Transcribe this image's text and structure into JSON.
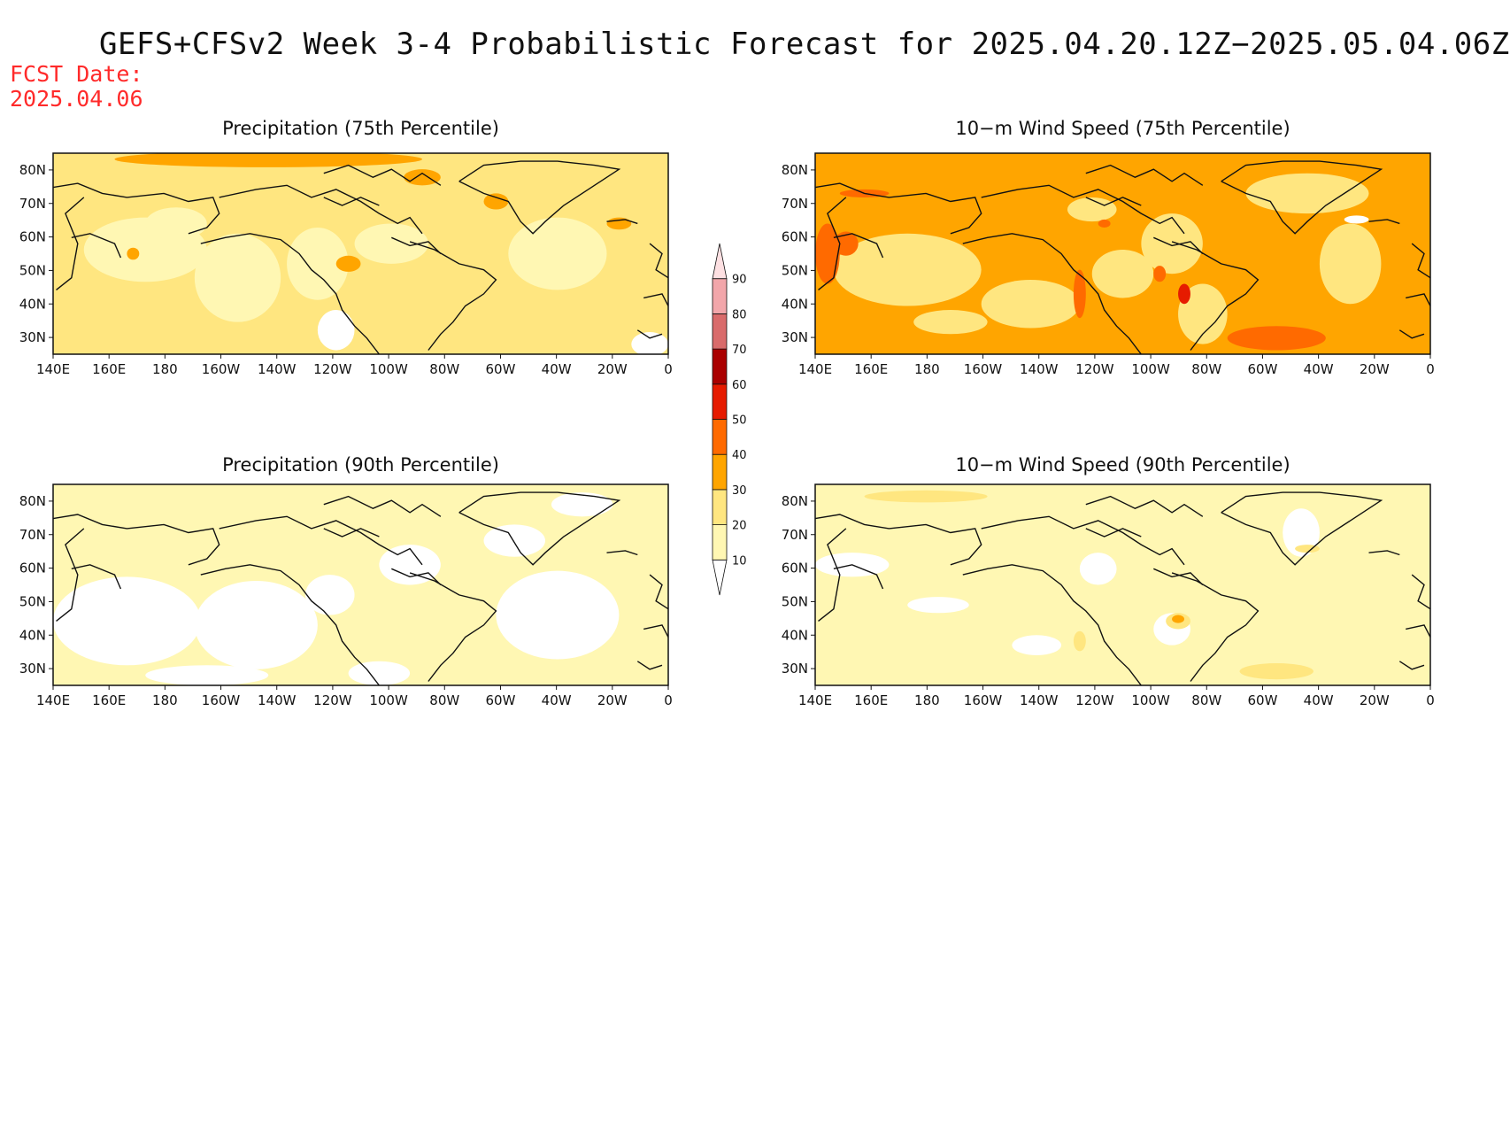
{
  "title": "GEFS+CFSv2 Week 3-4 Probabilistic Forecast for 2025.04.20.12Z−2025.05.04.06Z",
  "fcst_label": "FCST Date:",
  "fcst_date": "2025.04.06",
  "x_ticks": [
    "140E",
    "160E",
    "180",
    "160W",
    "140W",
    "120W",
    "100W",
    "80W",
    "60W",
    "40W",
    "20W",
    "0"
  ],
  "y_ticks": [
    "80N",
    "70N",
    "60N",
    "50N",
    "40N",
    "30N"
  ],
  "colorbar": {
    "levels": [
      "10",
      "20",
      "30",
      "40",
      "50",
      "60",
      "70",
      "80",
      "90"
    ],
    "colors": [
      "#ffffff",
      "#fff7b3",
      "#ffe680",
      "#ffa500",
      "#ff6a00",
      "#e61b00",
      "#aa0000",
      "#d96b6b",
      "#f2a6aa",
      "#fde0e2"
    ]
  },
  "panels": [
    {
      "title": "Precipitation (75th Percentile)",
      "palette": "precip75"
    },
    {
      "title": "10−m Wind Speed (75th Percentile)",
      "palette": "wind75"
    },
    {
      "title": "Precipitation (90th Percentile)",
      "palette": "precip90"
    },
    {
      "title": "10−m Wind Speed (90th Percentile)",
      "palette": "wind90"
    }
  ],
  "map_extent": {
    "lon": [
      "140E",
      "0"
    ],
    "lat": [
      "25N",
      "85N"
    ]
  }
}
